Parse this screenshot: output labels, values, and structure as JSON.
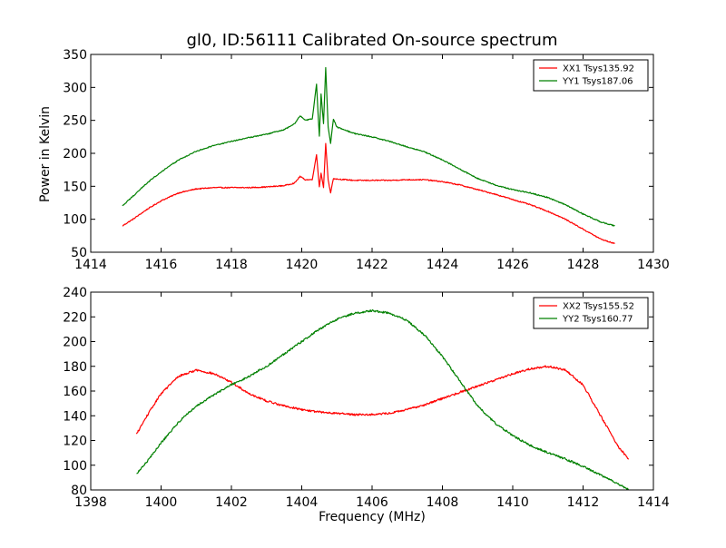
{
  "figure": {
    "title": "gl0, ID:56111 Calibrated On-source spectrum",
    "ylabel_top": "Power in Kelvin",
    "xlabel_bottom": "Frequency (MHz)"
  },
  "chart_data": [
    {
      "type": "line",
      "title": "gl0, ID:56111 Calibrated On-source spectrum",
      "xlabel": "",
      "ylabel": "Power in Kelvin",
      "xlim": [
        1414,
        1430
      ],
      "ylim": [
        50,
        350
      ],
      "xticks": [
        1414,
        1416,
        1418,
        1420,
        1422,
        1424,
        1426,
        1428,
        1430
      ],
      "yticks": [
        50,
        100,
        150,
        200,
        250,
        300,
        350
      ],
      "grid": false,
      "legend": "top-right",
      "series": [
        {
          "name": "XX1 Tsys135.92",
          "color": "#ff0000",
          "x": [
            1414.9,
            1415.2,
            1415.6,
            1416.0,
            1416.5,
            1417.0,
            1417.5,
            1418.0,
            1418.5,
            1419.0,
            1419.5,
            1419.8,
            1419.95,
            1420.1,
            1420.3,
            1420.42,
            1420.5,
            1420.55,
            1420.62,
            1420.68,
            1420.75,
            1420.82,
            1420.9,
            1421.0,
            1421.5,
            1422.0,
            1422.5,
            1423.0,
            1423.5,
            1424.0,
            1424.5,
            1425.0,
            1425.5,
            1426.0,
            1426.5,
            1427.0,
            1427.5,
            1428.0,
            1428.5,
            1428.9
          ],
          "y": [
            90,
            100,
            115,
            128,
            140,
            146,
            148,
            148,
            148,
            149,
            151,
            155,
            165,
            160,
            160,
            198,
            150,
            170,
            148,
            215,
            160,
            140,
            162,
            161,
            159,
            159,
            159,
            160,
            160,
            157,
            152,
            145,
            138,
            130,
            122,
            112,
            100,
            85,
            70,
            63
          ]
        },
        {
          "name": "YY1 Tsys187.06",
          "color": "#008000",
          "x": [
            1414.9,
            1415.2,
            1415.6,
            1416.0,
            1416.5,
            1417.0,
            1417.5,
            1418.0,
            1418.5,
            1419.0,
            1419.5,
            1419.8,
            1419.95,
            1420.1,
            1420.3,
            1420.42,
            1420.5,
            1420.55,
            1420.62,
            1420.68,
            1420.75,
            1420.82,
            1420.9,
            1421.0,
            1421.5,
            1422.0,
            1422.5,
            1423.0,
            1423.5,
            1424.0,
            1424.5,
            1425.0,
            1425.5,
            1426.0,
            1426.5,
            1427.0,
            1427.5,
            1428.0,
            1428.5,
            1428.9
          ],
          "y": [
            120,
            135,
            155,
            172,
            190,
            203,
            212,
            218,
            224,
            229,
            236,
            245,
            257,
            250,
            252,
            305,
            226,
            290,
            245,
            330,
            240,
            215,
            252,
            240,
            230,
            225,
            218,
            210,
            202,
            190,
            176,
            162,
            152,
            145,
            140,
            133,
            122,
            108,
            96,
            90
          ]
        }
      ]
    },
    {
      "type": "line",
      "title": "",
      "xlabel": "Frequency (MHz)",
      "ylabel": "",
      "xlim": [
        1398,
        1414
      ],
      "ylim": [
        80,
        240
      ],
      "xticks": [
        1398,
        1400,
        1402,
        1404,
        1406,
        1408,
        1410,
        1412,
        1414
      ],
      "yticks": [
        80,
        100,
        120,
        140,
        160,
        180,
        200,
        220,
        240
      ],
      "grid": false,
      "legend": "top-right",
      "series": [
        {
          "name": "XX2 Tsys155.52",
          "color": "#ff0000",
          "x": [
            1399.3,
            1399.6,
            1400.0,
            1400.5,
            1401.0,
            1401.5,
            1402.0,
            1402.5,
            1403.0,
            1403.5,
            1404.0,
            1404.5,
            1405.0,
            1405.5,
            1406.0,
            1406.5,
            1407.0,
            1407.5,
            1408.0,
            1408.5,
            1409.0,
            1409.5,
            1410.0,
            1410.5,
            1411.0,
            1411.5,
            1412.0,
            1412.5,
            1413.0,
            1413.3
          ],
          "y": [
            125,
            140,
            158,
            172,
            177,
            174,
            167,
            158,
            152,
            148,
            145,
            143,
            142,
            141,
            141,
            142,
            145,
            149,
            154,
            159,
            164,
            169,
            174,
            178,
            180,
            177,
            165,
            140,
            115,
            105
          ]
        },
        {
          "name": "YY2 Tsys160.77",
          "color": "#008000",
          "x": [
            1399.3,
            1399.6,
            1400.0,
            1400.5,
            1401.0,
            1401.5,
            1402.0,
            1402.5,
            1403.0,
            1403.5,
            1404.0,
            1404.5,
            1405.0,
            1405.5,
            1406.0,
            1406.5,
            1407.0,
            1407.5,
            1408.0,
            1408.5,
            1409.0,
            1409.5,
            1410.0,
            1410.5,
            1411.0,
            1411.5,
            1412.0,
            1412.5,
            1413.0,
            1413.3
          ],
          "y": [
            93,
            103,
            118,
            135,
            148,
            157,
            165,
            172,
            180,
            190,
            200,
            210,
            218,
            223,
            225,
            223,
            217,
            205,
            188,
            168,
            148,
            134,
            124,
            116,
            110,
            105,
            99,
            92,
            85,
            80
          ]
        }
      ]
    }
  ]
}
